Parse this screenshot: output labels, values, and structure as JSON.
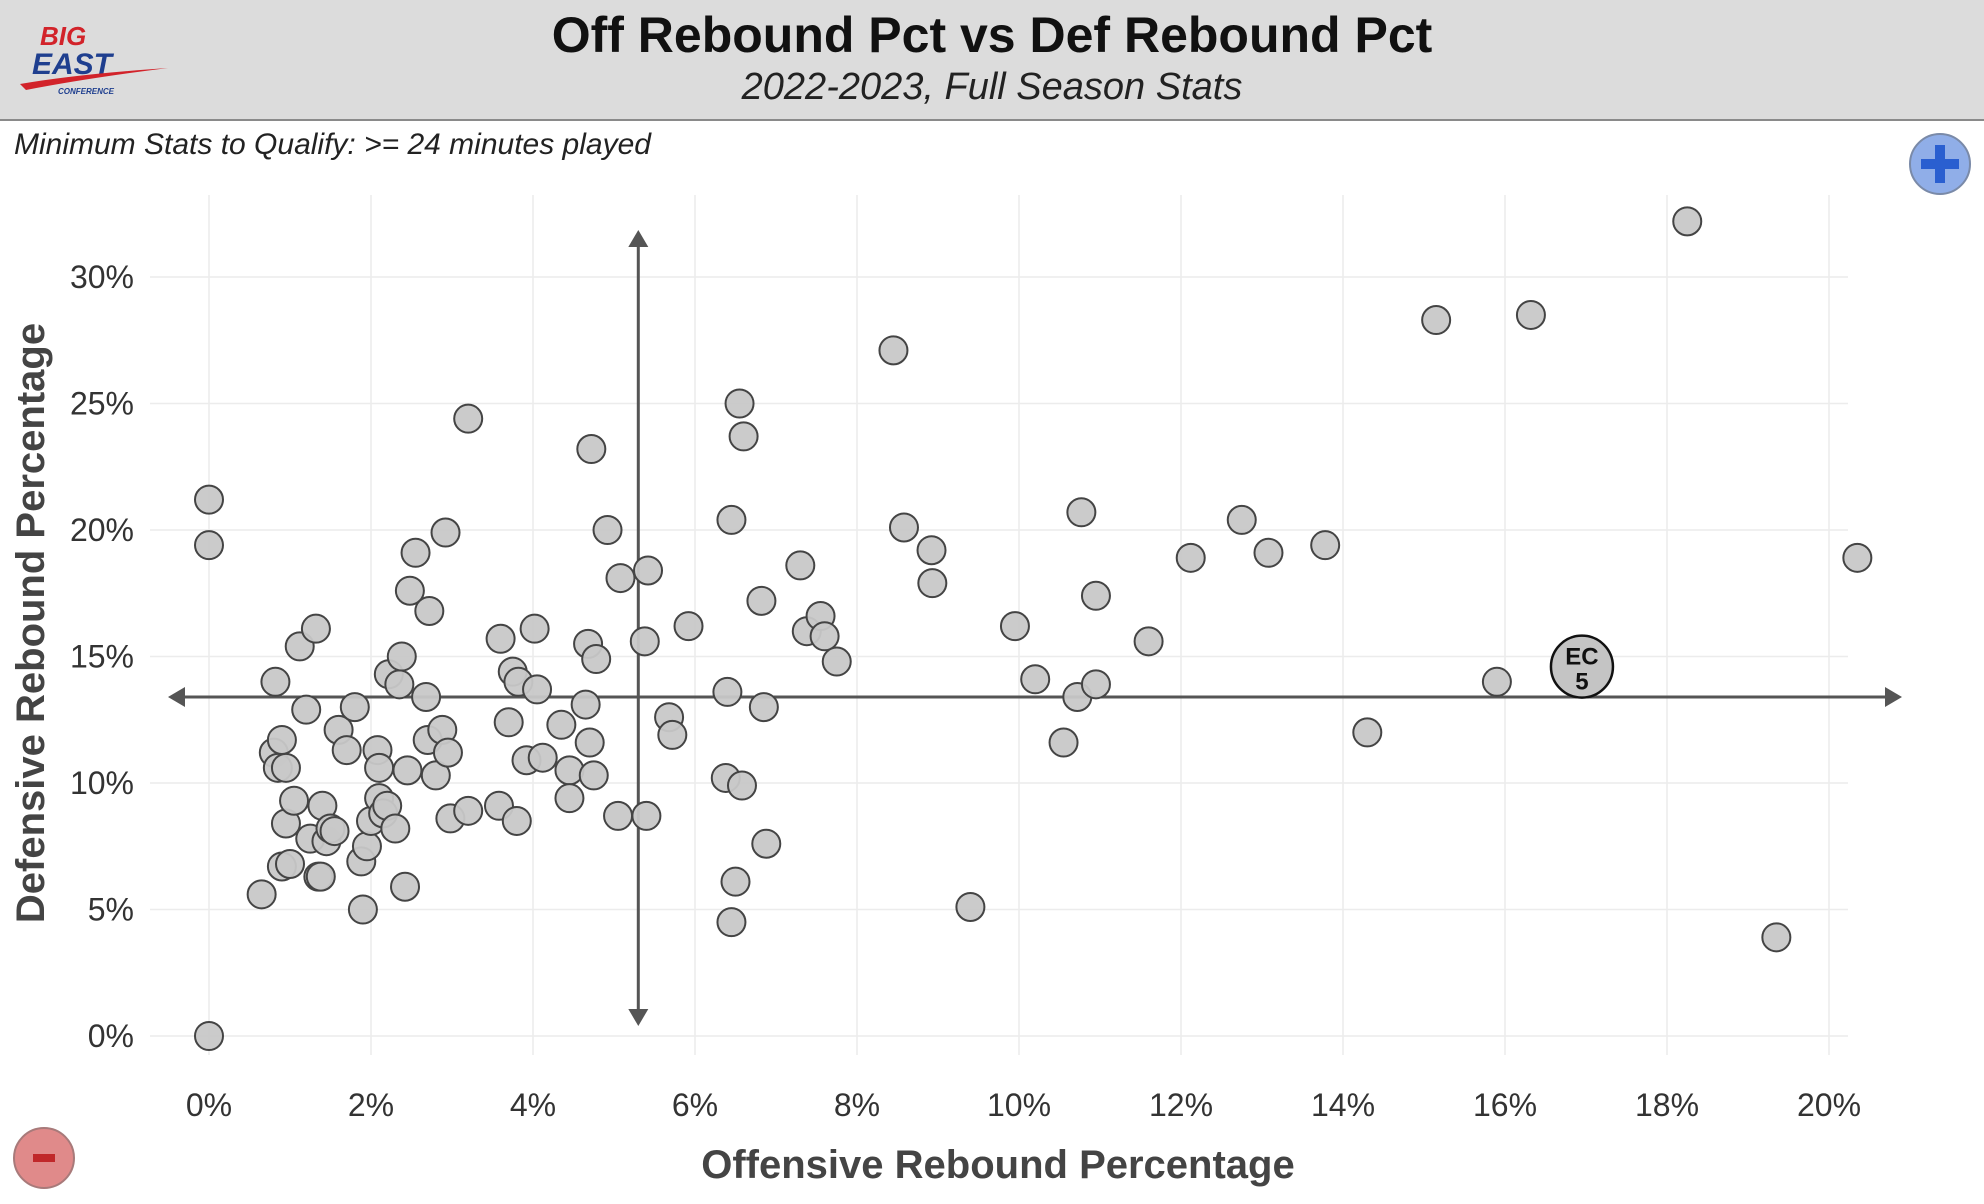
{
  "header": {
    "title": "Off Rebound Pct vs Def Rebound Pct",
    "subtitle": "2022-2023, Full Season Stats",
    "logo": {
      "text_big": "BIG",
      "text_east": "EAST",
      "text_conf": "CONFERENCE",
      "colors": {
        "red": "#d2232a",
        "blue": "#1f3f8f"
      }
    }
  },
  "note": "Minimum Stats to Qualify: >= 24 minutes played",
  "controls": {
    "zoom_in_icon": "plus-icon",
    "zoom_out_icon": "minus-icon"
  },
  "colors": {
    "point_fill": "#c8c8c8",
    "point_stroke": "#444444",
    "axis_line": "#555555",
    "grid": "#ececec",
    "zoom_in_bg": "#90aee8",
    "zoom_in_glyph": "#2a5fd0",
    "zoom_out_bg": "#e08a8a",
    "zoom_out_glyph": "#c0282a"
  },
  "chart_data": {
    "type": "scatter",
    "title": "Off Rebound Pct vs Def Rebound Pct",
    "subtitle": "2022-2023, Full Season Stats",
    "xlabel": "Offensive Rebound Percentage",
    "ylabel": "Defensive Rebound Percentage",
    "xlim": [
      -0.7,
      20.3
    ],
    "ylim": [
      -0.5,
      33.0
    ],
    "x_ticks": [
      0,
      2,
      4,
      6,
      8,
      10,
      12,
      14,
      16,
      18,
      20
    ],
    "x_tick_labels": [
      "0%",
      "2%",
      "4%",
      "6%",
      "8%",
      "10%",
      "12%",
      "14%",
      "16%",
      "18%",
      "20%"
    ],
    "y_ticks": [
      0,
      5,
      10,
      15,
      20,
      25,
      30
    ],
    "y_tick_labels": [
      "0%",
      "5%",
      "10%",
      "15%",
      "20%",
      "25%",
      "30%"
    ],
    "grid": true,
    "reference_lines": {
      "x_avg": 5.3,
      "y_avg": 13.4
    },
    "highlight": {
      "label_line1": "EC",
      "label_line2": "5",
      "x": 16.95,
      "y": 14.6
    },
    "points": [
      [
        0.0,
        21.2
      ],
      [
        0.0,
        19.4
      ],
      [
        0.0,
        0.0
      ],
      [
        0.65,
        5.6
      ],
      [
        0.8,
        11.2
      ],
      [
        0.82,
        14.0
      ],
      [
        0.85,
        10.6
      ],
      [
        0.9,
        11.7
      ],
      [
        0.9,
        6.7
      ],
      [
        0.95,
        10.6
      ],
      [
        0.95,
        8.4
      ],
      [
        1.0,
        6.8
      ],
      [
        1.05,
        9.3
      ],
      [
        1.12,
        15.4
      ],
      [
        1.2,
        12.9
      ],
      [
        1.25,
        7.8
      ],
      [
        1.32,
        16.1
      ],
      [
        1.35,
        6.3
      ],
      [
        1.38,
        6.3
      ],
      [
        1.4,
        9.1
      ],
      [
        1.45,
        7.7
      ],
      [
        1.5,
        8.2
      ],
      [
        1.55,
        8.1
      ],
      [
        1.6,
        12.1
      ],
      [
        1.7,
        11.3
      ],
      [
        1.8,
        13.0
      ],
      [
        1.88,
        6.9
      ],
      [
        1.9,
        5.0
      ],
      [
        1.95,
        7.5
      ],
      [
        2.0,
        8.5
      ],
      [
        2.08,
        11.3
      ],
      [
        2.1,
        10.6
      ],
      [
        2.1,
        9.4
      ],
      [
        2.15,
        8.8
      ],
      [
        2.2,
        9.1
      ],
      [
        2.22,
        14.3
      ],
      [
        2.3,
        8.2
      ],
      [
        2.35,
        13.9
      ],
      [
        2.38,
        15.0
      ],
      [
        2.42,
        5.9
      ],
      [
        2.45,
        10.5
      ],
      [
        2.48,
        17.6
      ],
      [
        2.55,
        19.1
      ],
      [
        2.68,
        13.4
      ],
      [
        2.7,
        11.7
      ],
      [
        2.72,
        16.8
      ],
      [
        2.8,
        10.3
      ],
      [
        2.88,
        12.1
      ],
      [
        2.92,
        19.9
      ],
      [
        2.95,
        11.2
      ],
      [
        2.98,
        8.6
      ],
      [
        3.2,
        24.4
      ],
      [
        3.2,
        8.9
      ],
      [
        3.58,
        9.1
      ],
      [
        3.6,
        15.7
      ],
      [
        3.7,
        12.4
      ],
      [
        3.75,
        14.4
      ],
      [
        3.8,
        8.5
      ],
      [
        3.82,
        14.0
      ],
      [
        3.92,
        10.9
      ],
      [
        4.02,
        16.1
      ],
      [
        4.05,
        13.7
      ],
      [
        4.12,
        11.0
      ],
      [
        4.35,
        12.3
      ],
      [
        4.45,
        10.5
      ],
      [
        4.45,
        9.4
      ],
      [
        4.65,
        13.1
      ],
      [
        4.68,
        15.5
      ],
      [
        4.7,
        11.6
      ],
      [
        4.72,
        23.2
      ],
      [
        4.75,
        10.3
      ],
      [
        4.78,
        14.9
      ],
      [
        4.92,
        20.0
      ],
      [
        5.05,
        8.7
      ],
      [
        5.08,
        18.1
      ],
      [
        5.38,
        15.6
      ],
      [
        5.4,
        8.7
      ],
      [
        5.42,
        18.4
      ],
      [
        5.68,
        12.6
      ],
      [
        5.72,
        11.9
      ],
      [
        5.92,
        16.2
      ],
      [
        6.38,
        10.2
      ],
      [
        6.4,
        13.6
      ],
      [
        6.45,
        20.4
      ],
      [
        6.45,
        4.5
      ],
      [
        6.5,
        6.1
      ],
      [
        6.55,
        25.0
      ],
      [
        6.58,
        9.9
      ],
      [
        6.6,
        23.7
      ],
      [
        6.82,
        17.2
      ],
      [
        6.85,
        13.0
      ],
      [
        6.88,
        7.6
      ],
      [
        7.3,
        18.6
      ],
      [
        7.38,
        16.0
      ],
      [
        7.55,
        16.6
      ],
      [
        7.6,
        15.8
      ],
      [
        7.75,
        14.8
      ],
      [
        8.45,
        27.1
      ],
      [
        8.58,
        20.1
      ],
      [
        8.92,
        19.2
      ],
      [
        8.93,
        17.9
      ],
      [
        9.4,
        5.1
      ],
      [
        9.95,
        16.2
      ],
      [
        10.2,
        14.1
      ],
      [
        10.55,
        11.6
      ],
      [
        10.72,
        13.4
      ],
      [
        10.77,
        20.7
      ],
      [
        10.95,
        17.4
      ],
      [
        10.95,
        13.9
      ],
      [
        11.6,
        15.6
      ],
      [
        12.12,
        18.9
      ],
      [
        12.75,
        20.4
      ],
      [
        13.08,
        19.1
      ],
      [
        13.78,
        19.4
      ],
      [
        14.3,
        12.0
      ],
      [
        15.15,
        28.3
      ],
      [
        15.9,
        14.0
      ],
      [
        16.32,
        28.5
      ],
      [
        18.25,
        32.2
      ],
      [
        19.35,
        3.9
      ],
      [
        20.35,
        18.9
      ]
    ]
  }
}
